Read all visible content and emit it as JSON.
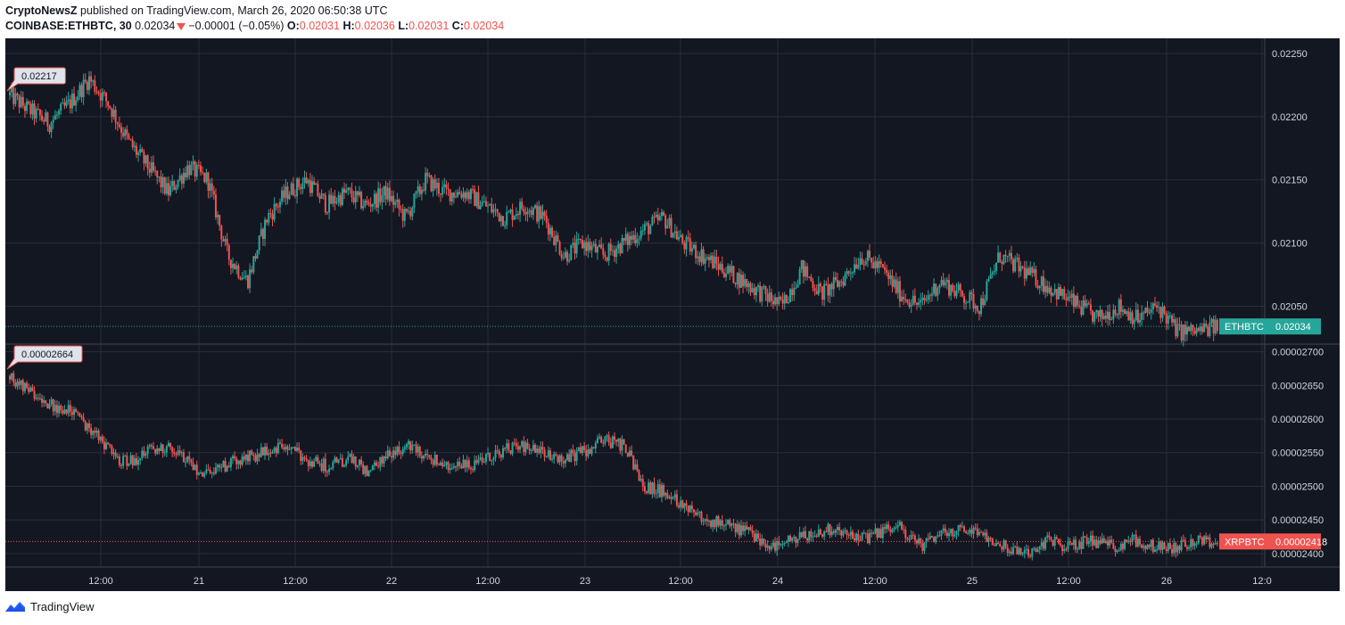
{
  "header": {
    "author": "CryptoNewsZ",
    "published_text": " published on TradingView.com, March 26, 2020 06:50:38 UTC",
    "symbol": "COINBASE:ETHBTC, 30",
    "last": "0.02034",
    "change": "−0.00001 (−0.05%)",
    "o_label": "O:",
    "o_value": "0.02031",
    "h_label": "H:",
    "h_value": "0.02036",
    "l_label": "L:",
    "l_value": "0.02031",
    "c_label": "C:",
    "c_value": "0.02034"
  },
  "footer": {
    "brand": "TradingView"
  },
  "colors": {
    "up": "#26a69a",
    "down": "#ef5350",
    "bg": "#131722",
    "grid": "#2a2e39",
    "axis_text": "#d1d4dc"
  },
  "chart_data": [
    {
      "type": "line",
      "title": "ETHBTC",
      "ylim": [
        0.0202,
        0.02262
      ],
      "y_ticks": [
        "0.02250",
        "0.02200",
        "0.02150",
        "0.02100",
        "0.02050"
      ],
      "x_ticks": [
        "12:00",
        "21",
        "12:00",
        "22",
        "12:00",
        "23",
        "12:00",
        "24",
        "12:00",
        "25",
        "12:00",
        "26",
        "12:0"
      ],
      "price_label": "ETHBTC",
      "last_price": "0.02034",
      "high_marker": "0.02217",
      "price_path": [
        0.02217,
        0.02205,
        0.02195,
        0.0221,
        0.0223,
        0.0221,
        0.0218,
        0.0216,
        0.0214,
        0.0216,
        0.0215,
        0.0209,
        0.0207,
        0.0212,
        0.0214,
        0.0215,
        0.0213,
        0.0214,
        0.0213,
        0.0214,
        0.0212,
        0.0215,
        0.0214,
        0.0214,
        0.0213,
        0.0212,
        0.0213,
        0.0212,
        0.0209,
        0.021,
        0.0209,
        0.021,
        0.0211,
        0.0212,
        0.021,
        0.0209,
        0.0208,
        0.0207,
        0.0206,
        0.0205,
        0.0208,
        0.0206,
        0.0207,
        0.0209,
        0.0208,
        0.0206,
        0.0205,
        0.0207,
        0.0206,
        0.0205,
        0.0209,
        0.0208,
        0.0207,
        0.0206,
        0.0205,
        0.0204,
        0.0205,
        0.0204,
        0.0205,
        0.0203,
        0.0203,
        0.02034
      ]
    },
    {
      "type": "line",
      "title": "XRPBTC",
      "ylim": [
        2.38e-05,
        2.71e-05
      ],
      "y_ticks": [
        "0.00002700",
        "0.00002650",
        "0.00002600",
        "0.00002550",
        "0.00002500",
        "0.00002450",
        "0.00002400"
      ],
      "price_label": "XRPBTC",
      "last_price": "0.00002418",
      "high_marker": "0.00002664",
      "price_path": [
        2.664e-05,
        2.64e-05,
        2.62e-05,
        2.61e-05,
        2.58e-05,
        2.54e-05,
        2.54e-05,
        2.56e-05,
        2.55e-05,
        2.52e-05,
        2.53e-05,
        2.54e-05,
        2.55e-05,
        2.56e-05,
        2.54e-05,
        2.53e-05,
        2.54e-05,
        2.52e-05,
        2.55e-05,
        2.56e-05,
        2.54e-05,
        2.53e-05,
        2.53e-05,
        2.55e-05,
        2.56e-05,
        2.55e-05,
        2.54e-05,
        2.55e-05,
        2.57e-05,
        2.56e-05,
        2.5e-05,
        2.49e-05,
        2.47e-05,
        2.45e-05,
        2.44e-05,
        2.43e-05,
        2.41e-05,
        2.42e-05,
        2.43e-05,
        2.44e-05,
        2.42e-05,
        2.43e-05,
        2.44e-05,
        2.41e-05,
        2.43e-05,
        2.44e-05,
        2.43e-05,
        2.41e-05,
        2.4e-05,
        2.42e-05,
        2.41e-05,
        2.42e-05,
        2.41e-05,
        2.42e-05,
        2.41e-05,
        2.41e-05,
        2.42e-05,
        2.418e-05
      ]
    }
  ]
}
